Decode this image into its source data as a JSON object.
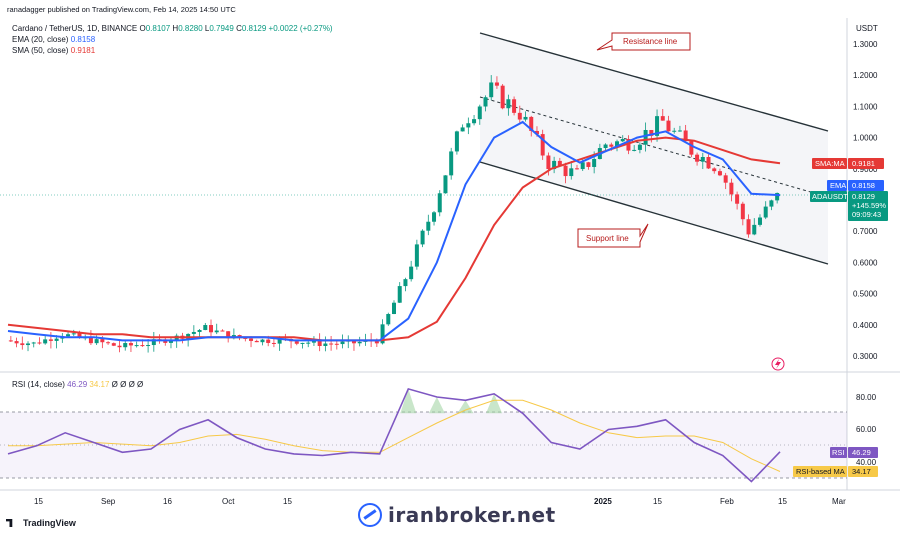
{
  "header": {
    "published": "ranadagger published on TradingView.com, Feb 14, 2025 14:50 UTC",
    "symbol_line": "Cardano / TetherUS, 1D, BINANCE",
    "ohlc": {
      "o_label": "O",
      "o": "0.8107",
      "h_label": "H",
      "h": "0.8280",
      "l_label": "L",
      "l": "0.7949",
      "c_label": "C",
      "c": "0.8129",
      "chg": "+0.0022 (+0.27%)"
    },
    "ema_label": "EMA (20, close)",
    "ema_value": "0.8158",
    "sma_label": "SMA (50, close)",
    "sma_value": "0.9181",
    "rsi_label": "RSI (14, close)",
    "rsi_value": "46.29",
    "rsi_ma_value": "34.17",
    "rsi_extra": "Ø Ø Ø Ø"
  },
  "price_axis": {
    "currency": "USDT",
    "ticks": [
      "1.3000",
      "1.2000",
      "1.1000",
      "1.0000",
      "0.9000",
      "0.8000",
      "0.7000",
      "0.6000",
      "0.5000",
      "0.4000",
      "0.3000"
    ]
  },
  "tags": {
    "sma": {
      "label": "SMA:MA",
      "value": "0.9181",
      "color": "#e53935"
    },
    "ema": {
      "label": "EMA",
      "value": "0.8158",
      "color": "#2962ff"
    },
    "price": {
      "label": "ADAUSDT",
      "value": "0.8129",
      "change": "+145.59%",
      "countdown": "09:09:43",
      "color": "#089981"
    }
  },
  "rsi_axis": {
    "ticks": [
      "80.00",
      "60.00",
      "40.00"
    ],
    "tag_rsi_label": "RSI",
    "tag_rsi_value": "46.29",
    "tag_ma_label": "RSI-based MA",
    "tag_ma_value": "34.17"
  },
  "time_axis": {
    "labels": [
      "15",
      "Sep",
      "16",
      "Oct",
      "15",
      "2025",
      "15",
      "Feb",
      "15",
      "Mar"
    ]
  },
  "annotations": {
    "resistance": "Resistance line",
    "support": "Support line"
  },
  "footer": {
    "tradingview": "TradingView",
    "watermark": "iranbroker.net"
  },
  "colors": {
    "up": "#089981",
    "down": "#f23645",
    "ema": "#2962ff",
    "sma": "#e53935",
    "rsi": "#7e57c2",
    "rsi_ma": "#f7c948",
    "channel": "#263238"
  },
  "chart_data": {
    "type": "candlestick",
    "title": "Cardano / TetherUS, 1D, BINANCE",
    "ylim": [
      0.26,
      1.34
    ],
    "x": [
      "2024-08-05",
      "2024-08-12",
      "2024-08-19",
      "2024-08-26",
      "2024-09-02",
      "2024-09-09",
      "2024-09-16",
      "2024-09-23",
      "2024-09-30",
      "2024-10-07",
      "2024-10-14",
      "2024-10-21",
      "2024-10-28",
      "2024-11-04",
      "2024-11-11",
      "2024-11-18",
      "2024-11-25",
      "2024-12-02",
      "2024-12-09",
      "2024-12-16",
      "2024-12-23",
      "2024-12-30",
      "2025-01-06",
      "2025-01-13",
      "2025-01-20",
      "2025-01-27",
      "2025-02-03",
      "2025-02-10"
    ],
    "series": [
      {
        "name": "ADAUSDT close",
        "values": [
          0.35,
          0.34,
          0.37,
          0.35,
          0.33,
          0.34,
          0.36,
          0.39,
          0.36,
          0.35,
          0.35,
          0.34,
          0.34,
          0.35,
          0.55,
          0.78,
          1.05,
          1.15,
          1.08,
          0.92,
          0.88,
          0.98,
          0.99,
          1.05,
          0.96,
          0.9,
          0.7,
          0.81
        ]
      },
      {
        "name": "EMA (20, close)",
        "values": [
          0.38,
          0.37,
          0.36,
          0.36,
          0.35,
          0.35,
          0.35,
          0.36,
          0.36,
          0.36,
          0.35,
          0.35,
          0.35,
          0.35,
          0.42,
          0.6,
          0.85,
          1.0,
          1.05,
          0.97,
          0.92,
          0.96,
          1.0,
          1.02,
          0.97,
          0.93,
          0.82,
          0.8158
        ]
      },
      {
        "name": "SMA (50, close)",
        "values": [
          0.4,
          0.39,
          0.38,
          0.37,
          0.37,
          0.36,
          0.36,
          0.36,
          0.36,
          0.36,
          0.36,
          0.35,
          0.35,
          0.35,
          0.36,
          0.41,
          0.55,
          0.72,
          0.84,
          0.9,
          0.93,
          0.96,
          0.99,
          1.0,
          0.99,
          0.96,
          0.93,
          0.9181
        ]
      }
    ],
    "channel": {
      "resistance": [
        [
          "2024-11-23",
          1.3
        ],
        [
          "2025-03-01",
          1.02
        ]
      ],
      "support": [
        [
          "2024-11-23",
          0.9
        ],
        [
          "2025-03-01",
          0.6
        ]
      ]
    },
    "rsi": {
      "ylim": [
        20,
        90
      ],
      "levels": [
        70,
        30
      ],
      "values": [
        45,
        50,
        58,
        52,
        46,
        48,
        60,
        66,
        55,
        48,
        45,
        44,
        46,
        45,
        85,
        80,
        78,
        82,
        70,
        52,
        48,
        60,
        62,
        66,
        52,
        44,
        28,
        46.29
      ],
      "ma_values": [
        50,
        50,
        51,
        52,
        51,
        50,
        52,
        56,
        57,
        54,
        50,
        47,
        46,
        46,
        55,
        64,
        72,
        78,
        78,
        72,
        64,
        58,
        55,
        56,
        56,
        52,
        42,
        34.17
      ]
    }
  }
}
